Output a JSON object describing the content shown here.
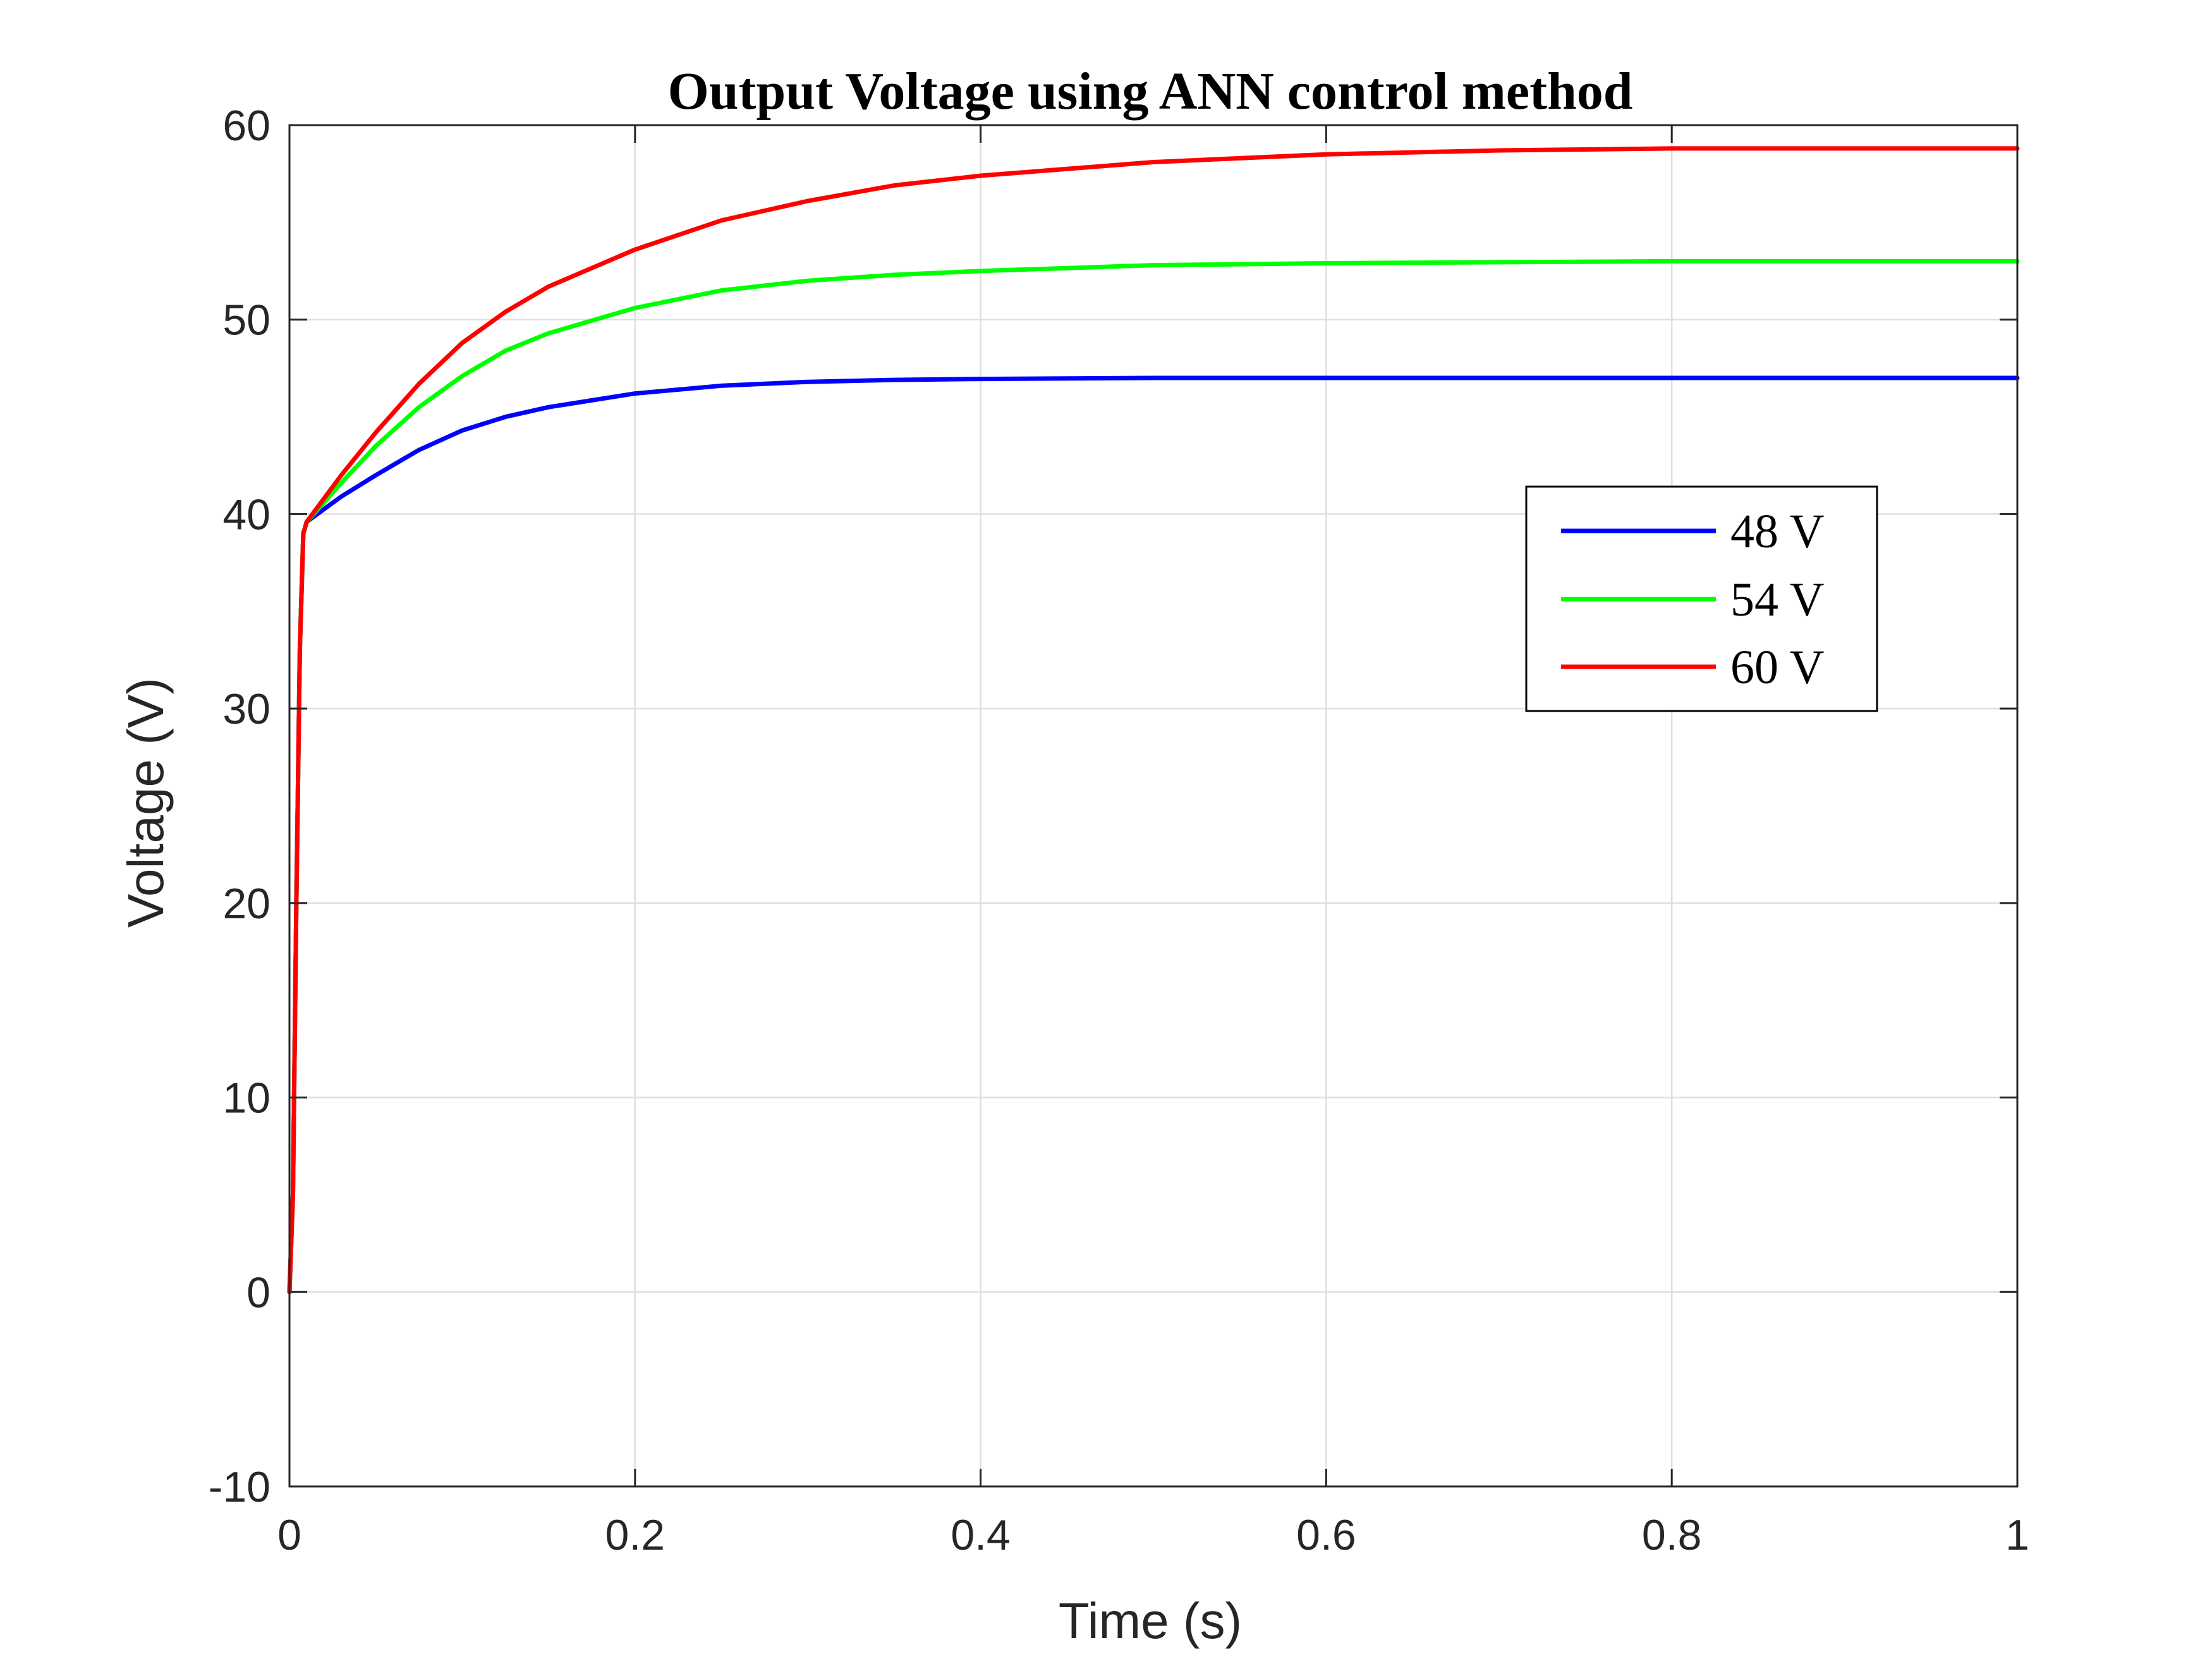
{
  "chart_data": {
    "type": "line",
    "title": "Output Voltage using ANN control method",
    "xlabel": "Time (s)",
    "ylabel": "Voltage (V)",
    "xlim": [
      0,
      1
    ],
    "ylim": [
      -10,
      60
    ],
    "xticks": [
      0,
      0.2,
      0.4,
      0.6,
      0.8,
      1
    ],
    "xtick_labels": [
      "0",
      "0.2",
      "0.4",
      "0.6",
      "0.8",
      "1"
    ],
    "yticks": [
      -10,
      0,
      10,
      20,
      30,
      40,
      50,
      60
    ],
    "ytick_labels": [
      "-10",
      "0",
      "10",
      "20",
      "30",
      "40",
      "50",
      "60"
    ],
    "grid": true,
    "legend_position": "right",
    "series": [
      {
        "name": "48 V",
        "color": "#0000ff",
        "x": [
          0,
          0.002,
          0.004,
          0.006,
          0.008,
          0.01,
          0.03,
          0.05,
          0.075,
          0.1,
          0.125,
          0.15,
          0.2,
          0.25,
          0.3,
          0.35,
          0.4,
          0.5,
          0.6,
          0.7,
          0.8,
          0.9,
          1.0
        ],
        "y": [
          0,
          5,
          20,
          33,
          39,
          39.6,
          40.9,
          42.0,
          43.3,
          44.3,
          45.0,
          45.5,
          46.2,
          46.6,
          46.8,
          46.9,
          46.95,
          47.0,
          47.0,
          47.0,
          47.0,
          47.0,
          47.0
        ]
      },
      {
        "name": "54 V",
        "color": "#00ff00",
        "x": [
          0,
          0.002,
          0.004,
          0.006,
          0.008,
          0.01,
          0.03,
          0.05,
          0.075,
          0.1,
          0.125,
          0.15,
          0.2,
          0.25,
          0.3,
          0.35,
          0.4,
          0.5,
          0.6,
          0.7,
          0.8,
          0.9,
          1.0
        ],
        "y": [
          0,
          5,
          20,
          33,
          39,
          39.6,
          41.6,
          43.5,
          45.5,
          47.1,
          48.4,
          49.3,
          50.6,
          51.5,
          52.0,
          52.3,
          52.5,
          52.8,
          52.9,
          52.95,
          53.0,
          53.0,
          53.0
        ]
      },
      {
        "name": "60 V",
        "color": "#ff0000",
        "x": [
          0,
          0.002,
          0.004,
          0.006,
          0.008,
          0.01,
          0.03,
          0.05,
          0.075,
          0.1,
          0.125,
          0.15,
          0.2,
          0.25,
          0.3,
          0.35,
          0.4,
          0.5,
          0.6,
          0.7,
          0.8,
          0.9,
          1.0
        ],
        "y": [
          0,
          5,
          20,
          33,
          39,
          39.6,
          42.0,
          44.2,
          46.7,
          48.8,
          50.4,
          51.7,
          53.6,
          55.1,
          56.1,
          56.9,
          57.4,
          58.1,
          58.5,
          58.7,
          58.8,
          58.8,
          58.8
        ]
      }
    ]
  }
}
